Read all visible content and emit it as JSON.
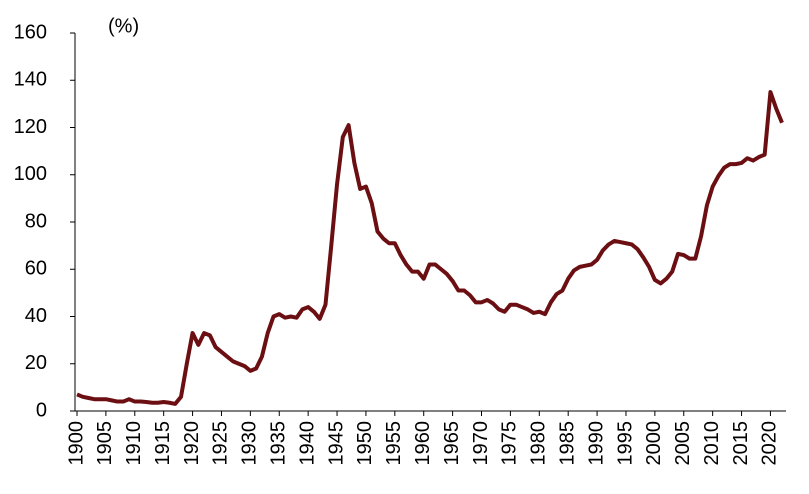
{
  "chart_data": {
    "type": "line",
    "annotation": "(%)",
    "x": [
      1900,
      1901,
      1902,
      1903,
      1904,
      1905,
      1906,
      1907,
      1908,
      1909,
      1910,
      1911,
      1912,
      1913,
      1914,
      1915,
      1916,
      1917,
      1918,
      1919,
      1920,
      1921,
      1922,
      1923,
      1924,
      1925,
      1926,
      1927,
      1928,
      1929,
      1930,
      1931,
      1932,
      1933,
      1934,
      1935,
      1936,
      1937,
      1938,
      1939,
      1940,
      1941,
      1942,
      1943,
      1944,
      1945,
      1946,
      1947,
      1948,
      1949,
      1950,
      1951,
      1952,
      1953,
      1954,
      1955,
      1956,
      1957,
      1958,
      1959,
      1960,
      1961,
      1962,
      1963,
      1964,
      1965,
      1966,
      1967,
      1968,
      1969,
      1970,
      1971,
      1972,
      1973,
      1974,
      1975,
      1976,
      1977,
      1978,
      1979,
      1980,
      1981,
      1982,
      1983,
      1984,
      1985,
      1986,
      1987,
      1988,
      1989,
      1990,
      1991,
      1992,
      1993,
      1994,
      1995,
      1996,
      1997,
      1998,
      1999,
      2000,
      2001,
      2002,
      2003,
      2004,
      2005,
      2006,
      2007,
      2008,
      2009,
      2010,
      2011,
      2012,
      2013,
      2014,
      2015,
      2016,
      2017,
      2018,
      2019,
      2020,
      2021,
      2022
    ],
    "values": [
      7,
      6,
      5.5,
      5,
      5,
      5,
      4.5,
      4,
      4,
      5,
      4,
      4,
      3.8,
      3.5,
      3.5,
      3.8,
      3.5,
      3,
      6,
      20,
      33,
      28,
      33,
      32,
      27,
      25,
      23,
      21,
      20,
      19,
      17,
      18,
      23,
      33,
      40,
      41,
      39.5,
      40,
      39.5,
      43,
      44,
      42,
      39,
      45,
      70,
      96,
      116,
      121,
      105,
      94,
      95,
      88,
      76,
      73,
      71,
      71,
      66,
      62,
      59,
      59,
      56,
      62,
      62,
      60,
      58,
      55,
      51,
      51,
      49,
      46,
      46,
      47,
      45.5,
      43,
      42,
      45,
      45,
      44,
      43,
      41.5,
      42,
      41,
      46,
      49.5,
      51,
      56,
      59.5,
      61,
      61.5,
      62,
      64,
      68,
      70.5,
      72,
      71.5,
      71,
      70.5,
      68.5,
      65,
      61,
      55.5,
      54,
      56,
      59,
      66.5,
      66,
      64.5,
      64.5,
      74,
      87,
      95,
      99.5,
      103,
      104.5,
      104.5,
      105,
      107,
      106,
      107.5,
      108.5,
      135,
      128,
      122
    ],
    "color": "#6b0f12",
    "xlim": [
      1900,
      2022
    ],
    "xticks": [
      1900,
      1905,
      1910,
      1915,
      1920,
      1925,
      1930,
      1935,
      1940,
      1945,
      1950,
      1955,
      1960,
      1965,
      1970,
      1975,
      1980,
      1985,
      1990,
      1995,
      2000,
      2005,
      2010,
      2015,
      2020
    ],
    "ylim": [
      0,
      160
    ],
    "yticks": [
      0,
      20,
      40,
      60,
      80,
      100,
      120,
      140,
      160
    ]
  }
}
